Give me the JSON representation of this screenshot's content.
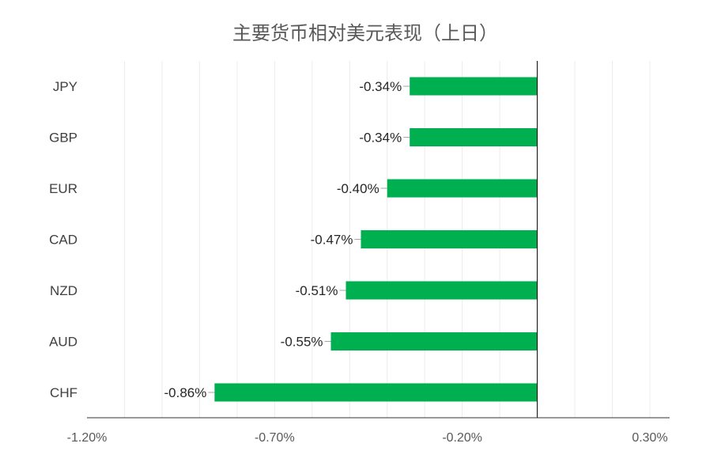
{
  "chart_data": {
    "type": "bar",
    "orientation": "horizontal",
    "title": "主要货币相对美元表现（上日）",
    "categories": [
      "JPY",
      "GBP",
      "EUR",
      "CAD",
      "NZD",
      "AUD",
      "CHF"
    ],
    "values": [
      -0.34,
      -0.34,
      -0.4,
      -0.47,
      -0.51,
      -0.55,
      -0.86
    ],
    "data_labels": [
      "-0.34%",
      "-0.34%",
      "-0.40%",
      "-0.47%",
      "-0.51%",
      "-0.55%",
      "-0.86%"
    ],
    "xlim": [
      -1.2,
      0.3
    ],
    "x_ticks": [
      -1.2,
      -0.7,
      -0.2,
      0.3
    ],
    "x_tick_labels": [
      "-1.20%",
      "-0.70%",
      "-0.20%",
      "0.30%"
    ],
    "grid": true,
    "legend": "none",
    "bar_color": "#00b050"
  }
}
